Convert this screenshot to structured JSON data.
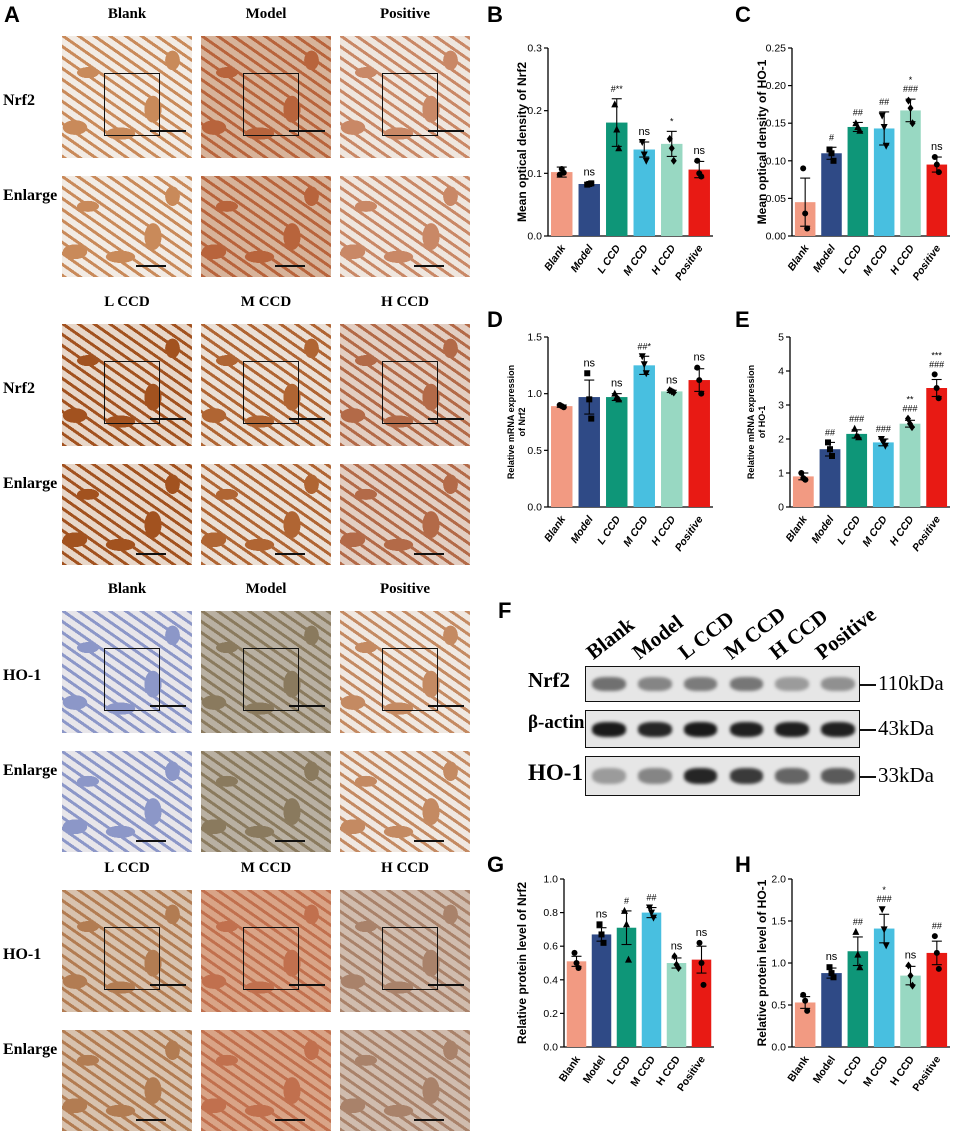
{
  "panels": {
    "A": "A",
    "B": "B",
    "C": "C",
    "D": "D",
    "E": "E",
    "F": "F",
    "G": "G",
    "H": "H"
  },
  "histology": {
    "blocks": [
      {
        "cols": [
          "Blank",
          "Model",
          "Positive"
        ],
        "rows": [
          "Nrf2",
          "Enlarge"
        ],
        "colors": [
          "#c98a5a",
          "#b8643c",
          "#c98866"
        ],
        "bg": [
          "#f2ebe4",
          "#d7b39a",
          "#efe6de"
        ]
      },
      {
        "cols": [
          "L CCD",
          "M CCD",
          "H CCD"
        ],
        "rows": [
          "Nrf2",
          "Enlarge"
        ],
        "colors": [
          "#a2521f",
          "#b06533",
          "#b36a48"
        ],
        "bg": [
          "#e8d7c9",
          "#ebe0d6",
          "#e3cec2"
        ]
      },
      {
        "cols": [
          "Blank",
          "Model",
          "Positive"
        ],
        "rows": [
          "HO-1",
          "Enlarge"
        ],
        "colors": [
          "#8c97c8",
          "#8a7a5e",
          "#c48a62"
        ],
        "bg": [
          "#e8e6ea",
          "#b9b0a2",
          "#f0e8e1"
        ]
      },
      {
        "cols": [
          "L CCD",
          "M CCD",
          "H CCD"
        ],
        "rows": [
          "HO-1",
          "Enlarge"
        ],
        "colors": [
          "#b27c52",
          "#c1704e",
          "#a9826a"
        ],
        "bg": [
          "#d8c2ae",
          "#d9a487",
          "#d0bcae"
        ]
      }
    ]
  },
  "western_blot": {
    "lanes": [
      "Blank",
      "Model",
      "L CCD",
      "M CCD",
      "H CCD",
      "Positive"
    ],
    "proteins": [
      {
        "name": "Nrf2",
        "kda": "110kDa",
        "intensity": [
          0.55,
          0.45,
          0.5,
          0.52,
          0.35,
          0.4
        ]
      },
      {
        "name": "β-actin",
        "kda": "43kDa",
        "intensity": [
          0.95,
          0.9,
          0.95,
          0.92,
          0.93,
          0.92
        ]
      },
      {
        "name": "HO-1",
        "kda": "33kDa",
        "intensity": [
          0.35,
          0.45,
          0.9,
          0.8,
          0.6,
          0.65
        ]
      }
    ]
  },
  "chart_data": [
    {
      "panel": "B",
      "type": "bar",
      "categories": [
        "Blank",
        "Model",
        "L CCD",
        "M CCD",
        "H CCD",
        "Positive"
      ],
      "values": [
        0.102,
        0.083,
        0.181,
        0.138,
        0.147,
        0.106
      ],
      "errors": [
        0.008,
        0.002,
        0.038,
        0.012,
        0.02,
        0.013
      ],
      "points": [
        [
          0.098,
          0.107,
          0.101
        ],
        [
          0.082,
          0.083,
          0.084
        ],
        [
          0.21,
          0.17,
          0.14
        ],
        [
          0.15,
          0.13,
          0.12
        ],
        [
          0.155,
          0.14,
          0.12
        ],
        [
          0.12,
          0.1,
          0.095
        ]
      ],
      "markers": [
        "circle",
        "square",
        "triangle",
        "triangle-down",
        "diamond",
        "circle"
      ],
      "annotations": [
        "",
        "ns",
        "#**",
        "ns",
        "*",
        "ns"
      ],
      "ylabel": "Mean optical density of  Nrf2",
      "ylim": [
        0,
        0.3
      ],
      "yticks": [
        "0.0",
        "0.1",
        "0.2",
        "0.3"
      ],
      "colors": [
        "#f29a82",
        "#2f4a86",
        "#0e9678",
        "#48bfe0",
        "#98d8c2",
        "#e81a14"
      ]
    },
    {
      "panel": "C",
      "type": "bar",
      "categories": [
        "Blank",
        "Model",
        "L CCD",
        "M CCD",
        "H CCD",
        "Positive"
      ],
      "values": [
        0.045,
        0.11,
        0.145,
        0.143,
        0.167,
        0.095
      ],
      "errors": [
        0.032,
        0.008,
        0.006,
        0.022,
        0.015,
        0.01
      ],
      "points": [
        [
          0.09,
          0.03,
          0.01
        ],
        [
          0.115,
          0.11,
          0.1
        ],
        [
          0.15,
          0.145,
          0.14
        ],
        [
          0.16,
          0.145,
          0.12
        ],
        [
          0.18,
          0.17,
          0.15
        ],
        [
          0.105,
          0.095,
          0.085
        ]
      ],
      "markers": [
        "circle",
        "square",
        "triangle",
        "triangle-down",
        "diamond",
        "circle"
      ],
      "annotations": [
        "",
        "#",
        "##",
        "##",
        "*\n###",
        "ns"
      ],
      "ylabel": "Mean optical density of  HO-1",
      "ylim": [
        0,
        0.25
      ],
      "yticks": [
        "0.00",
        "0.05",
        "0.10",
        "0.15",
        "0.20",
        "0.25"
      ],
      "colors": [
        "#f29a82",
        "#2f4a86",
        "#0e9678",
        "#48bfe0",
        "#98d8c2",
        "#e81a14"
      ]
    },
    {
      "panel": "D",
      "type": "bar",
      "categories": [
        "Blank",
        "Model",
        "L CCD",
        "M CCD",
        "H CCD",
        "Positive"
      ],
      "values": [
        0.89,
        0.97,
        0.97,
        1.25,
        1.02,
        1.12
      ],
      "errors": [
        0.01,
        0.15,
        0.03,
        0.08,
        0.01,
        0.1
      ],
      "points": [
        [
          0.9,
          0.89,
          0.88
        ],
        [
          1.18,
          0.95,
          0.78
        ],
        [
          1.0,
          0.97,
          0.95
        ],
        [
          1.33,
          1.26,
          1.18
        ],
        [
          1.03,
          1.02,
          1.01
        ],
        [
          1.23,
          1.12,
          1.0
        ]
      ],
      "markers": [
        "circle",
        "square",
        "triangle",
        "triangle-down",
        "diamond",
        "circle"
      ],
      "annotations": [
        "",
        "ns",
        "ns",
        "##*",
        "ns",
        "ns"
      ],
      "ylabel": "Relative mRNA expression\nof Nrf2",
      "ylim": [
        0,
        1.5
      ],
      "yticks": [
        "0.0",
        "0.5",
        "1.0",
        "1.5"
      ],
      "colors": [
        "#f29a82",
        "#2f4a86",
        "#0e9678",
        "#48bfe0",
        "#98d8c2",
        "#e81a14"
      ]
    },
    {
      "panel": "E",
      "type": "bar",
      "categories": [
        "Blank",
        "Model",
        "L CCD",
        "M CCD",
        "H CCD",
        "Positive"
      ],
      "values": [
        0.9,
        1.7,
        2.15,
        1.9,
        2.45,
        3.5
      ],
      "errors": [
        0.1,
        0.2,
        0.12,
        0.1,
        0.1,
        0.25
      ],
      "points": [
        [
          1.0,
          0.85,
          0.8
        ],
        [
          1.9,
          1.7,
          1.5
        ],
        [
          2.3,
          2.1,
          2.05
        ],
        [
          2.0,
          1.9,
          1.8
        ],
        [
          2.6,
          2.45,
          2.35
        ],
        [
          3.9,
          3.5,
          3.2
        ]
      ],
      "markers": [
        "circle",
        "square",
        "triangle",
        "triangle-down",
        "diamond",
        "circle"
      ],
      "annotations": [
        "",
        "##",
        "###",
        "###",
        "**\n###",
        "***\n###"
      ],
      "ylabel": "Relative mRNA expression\nof HO-1",
      "ylim": [
        0,
        5
      ],
      "yticks": [
        "0",
        "1",
        "2",
        "3",
        "4",
        "5"
      ],
      "colors": [
        "#f29a82",
        "#2f4a86",
        "#0e9678",
        "#48bfe0",
        "#98d8c2",
        "#e81a14"
      ]
    },
    {
      "panel": "G",
      "type": "bar",
      "categories": [
        "Blank",
        "Model",
        "L CCD",
        "M CCD",
        "H CCD",
        "Positive"
      ],
      "values": [
        0.51,
        0.67,
        0.71,
        0.8,
        0.5,
        0.52
      ],
      "errors": [
        0.03,
        0.04,
        0.1,
        0.03,
        0.03,
        0.08
      ],
      "points": [
        [
          0.56,
          0.5,
          0.47
        ],
        [
          0.73,
          0.67,
          0.62
        ],
        [
          0.81,
          0.73,
          0.52
        ],
        [
          0.83,
          0.8,
          0.77
        ],
        [
          0.54,
          0.49,
          0.47
        ],
        [
          0.62,
          0.5,
          0.37
        ]
      ],
      "markers": [
        "circle",
        "square",
        "triangle",
        "triangle-down",
        "diamond",
        "circle"
      ],
      "annotations": [
        "",
        "ns",
        "#",
        "##",
        "ns",
        "ns"
      ],
      "ylabel": "Relative protein level of Nrf2",
      "ylim": [
        0,
        1.0
      ],
      "yticks": [
        "0.0",
        "0.2",
        "0.4",
        "0.6",
        "0.8",
        "1.0"
      ],
      "colors": [
        "#f29a82",
        "#2f4a86",
        "#0e9678",
        "#48bfe0",
        "#98d8c2",
        "#e81a14"
      ]
    },
    {
      "panel": "H",
      "type": "bar",
      "categories": [
        "Blank",
        "Model",
        "L CCD",
        "M CCD",
        "H CCD",
        "Positive"
      ],
      "values": [
        0.53,
        0.88,
        1.14,
        1.41,
        0.85,
        1.12
      ],
      "errors": [
        0.07,
        0.06,
        0.17,
        0.17,
        0.11,
        0.14
      ],
      "points": [
        [
          0.62,
          0.55,
          0.43
        ],
        [
          0.95,
          0.88,
          0.83
        ],
        [
          1.37,
          1.1,
          0.95
        ],
        [
          1.64,
          1.4,
          1.21
        ],
        [
          0.97,
          0.85,
          0.73
        ],
        [
          1.32,
          1.12,
          0.93
        ]
      ],
      "markers": [
        "circle",
        "square",
        "triangle",
        "triangle-down",
        "diamond",
        "circle"
      ],
      "annotations": [
        "",
        "ns",
        "##",
        "*\n###",
        "ns",
        "##"
      ],
      "ylabel": "Relative protein level of HO-1",
      "ylim": [
        0,
        2.0
      ],
      "yticks": [
        "0.0",
        "0.5",
        "1.0",
        "1.5",
        "2.0"
      ],
      "colors": [
        "#f29a82",
        "#2f4a86",
        "#0e9678",
        "#48bfe0",
        "#98d8c2",
        "#e81a14"
      ]
    }
  ]
}
